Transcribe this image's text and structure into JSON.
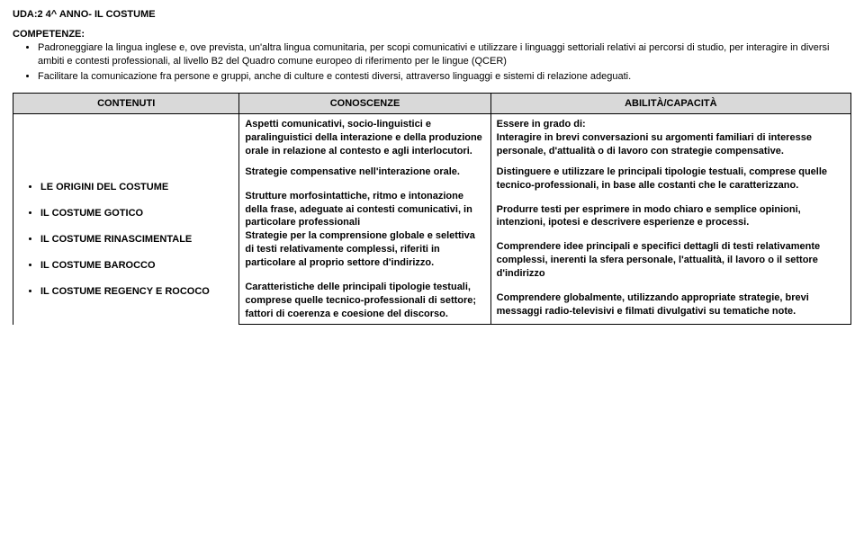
{
  "header": "UDA:2    4^  ANNO-  IL  COSTUME",
  "competenze": {
    "title": "COMPETENZE:",
    "items": [
      "Padroneggiare la lingua inglese e, ove prevista, un'altra lingua comunitaria, per scopi comunicativi e utilizzare i linguaggi settoriali relativi  ai percorsi di studio, per interagire in diversi ambiti e contesti professionali, al livello B2 del Quadro comune europeo di riferimento per le lingue (QCER)",
      "Facilitare la comunicazione fra persone e gruppi, anche di culture  e contesti diversi, attraverso linguaggi e sistemi di  relazione adeguati."
    ]
  },
  "table": {
    "headers": [
      "CONTENUTI",
      "CONOSCENZE",
      "ABILITÀ/CAPACITÀ"
    ],
    "contenuti_items": [
      "LE ORIGINI DEL COSTUME",
      "IL COSTUME GOTICO",
      "IL COSTUME RINASCIMENTALE",
      "IL COSTUME BAROCCO",
      "IL COSTUME REGENCY E ROCOCO"
    ],
    "conoscenze": {
      "p1": "Aspetti comunicativi, socio-linguistici e paralinguistici della interazione e della produzione orale in relazione al contesto e agli interlocutori.",
      "p2": "Strategie compensative nell'interazione orale.",
      "p3": "Strutture morfosintattiche, ritmo e intonazione della frase, adeguate ai contesti comunicativi, in particolare professionali",
      "p4": "Strategie per la comprensione globale e selettiva di testi relativamente complessi, riferiti in particolare al proprio settore d'indirizzo.",
      "p5": "Caratteristiche delle principali tipologie testuali, comprese quelle tecnico-professionali di settore; fattori di coerenza e coesione del discorso."
    },
    "abilita": {
      "lead": "Essere in grado di:",
      "p1": "Interagire in brevi conversazioni su argomenti familiari di interesse personale, d'attualità o di lavoro con strategie compensative.",
      "p2": "Distinguere e utilizzare le principali tipologie testuali, comprese quelle tecnico-professionali, in base alle costanti che le caratterizzano.",
      "p3": "Produrre testi per esprimere in modo chiaro e semplice opinioni, intenzioni, ipotesi e descrivere esperienze e processi.",
      "p4": "Comprendere idee principali e specifici dettagli di testi relativamente complessi, inerenti la sfera personale, l'attualità, il lavoro o il settore d'indirizzo",
      "p5": "Comprendere globalmente, utilizzando appropriate strategie, brevi messaggi radio-televisivi e filmati divulgativi su tematiche note."
    }
  }
}
